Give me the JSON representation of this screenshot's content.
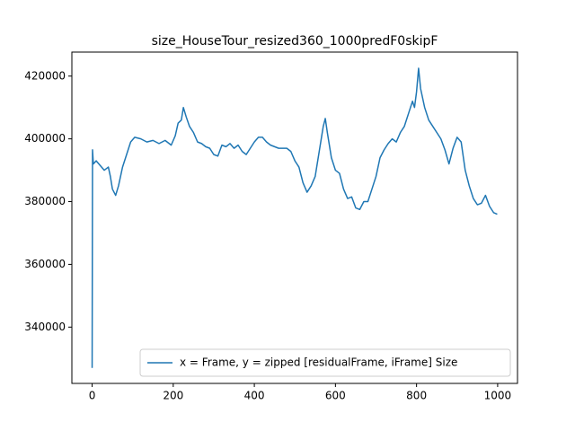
{
  "chart_data": {
    "type": "line",
    "title": "size_HouseTour_resized360_1000predF0skipF",
    "xlim": [
      -49.95,
      1048.95
    ],
    "xticks": [
      0,
      200,
      400,
      600,
      800,
      1000
    ],
    "ylim": [
      322057,
      427657
    ],
    "yticks": [
      340000,
      360000,
      380000,
      400000,
      420000
    ],
    "grid": false,
    "legend": "lower right",
    "series": [
      {
        "name": "x = Frame, y =  zipped [residualFrame, iFrame] Size",
        "color": "#1f77b4",
        "x": [
          0,
          1,
          3,
          10,
          20,
          30,
          40,
          45,
          50,
          58,
          65,
          75,
          85,
          95,
          105,
          120,
          135,
          150,
          165,
          180,
          195,
          205,
          212,
          220,
          225,
          232,
          240,
          250,
          260,
          270,
          280,
          290,
          300,
          310,
          320,
          330,
          340,
          350,
          360,
          370,
          380,
          390,
          400,
          410,
          420,
          430,
          440,
          450,
          460,
          470,
          480,
          490,
          500,
          510,
          520,
          530,
          540,
          550,
          560,
          570,
          575,
          580,
          590,
          600,
          610,
          620,
          630,
          640,
          650,
          660,
          670,
          680,
          690,
          700,
          710,
          720,
          730,
          740,
          750,
          760,
          770,
          780,
          790,
          795,
          800,
          805,
          810,
          820,
          830,
          840,
          850,
          860,
          870,
          880,
          890,
          900,
          910,
          920,
          930,
          940,
          950,
          960,
          970,
          980,
          990,
          999
        ],
        "values": [
          327000,
          396500,
          392000,
          393000,
          391500,
          390000,
          391000,
          388000,
          384000,
          382000,
          385000,
          391000,
          395000,
          399000,
          400500,
          400000,
          399000,
          399500,
          398500,
          399500,
          398000,
          401000,
          405000,
          406000,
          410000,
          407000,
          404000,
          402000,
          399000,
          398500,
          397500,
          397000,
          395000,
          394500,
          398000,
          397500,
          398500,
          397000,
          398000,
          396000,
          395000,
          397000,
          399000,
          400500,
          400500,
          399000,
          398000,
          397500,
          397000,
          397000,
          397000,
          396000,
          393000,
          391000,
          386000,
          383000,
          385000,
          388000,
          396000,
          404000,
          406500,
          402000,
          394000,
          390000,
          389000,
          384000,
          381000,
          381500,
          378000,
          377500,
          380000,
          380000,
          384000,
          388000,
          394000,
          396500,
          398500,
          400000,
          399000,
          402000,
          404000,
          408000,
          412000,
          410000,
          415000,
          422500,
          416000,
          410000,
          406000,
          404000,
          402000,
          400000,
          396500,
          392000,
          397000,
          400500,
          399000,
          390000,
          385000,
          381000,
          379000,
          379500,
          382000,
          378500,
          376500,
          376000
        ]
      }
    ]
  }
}
